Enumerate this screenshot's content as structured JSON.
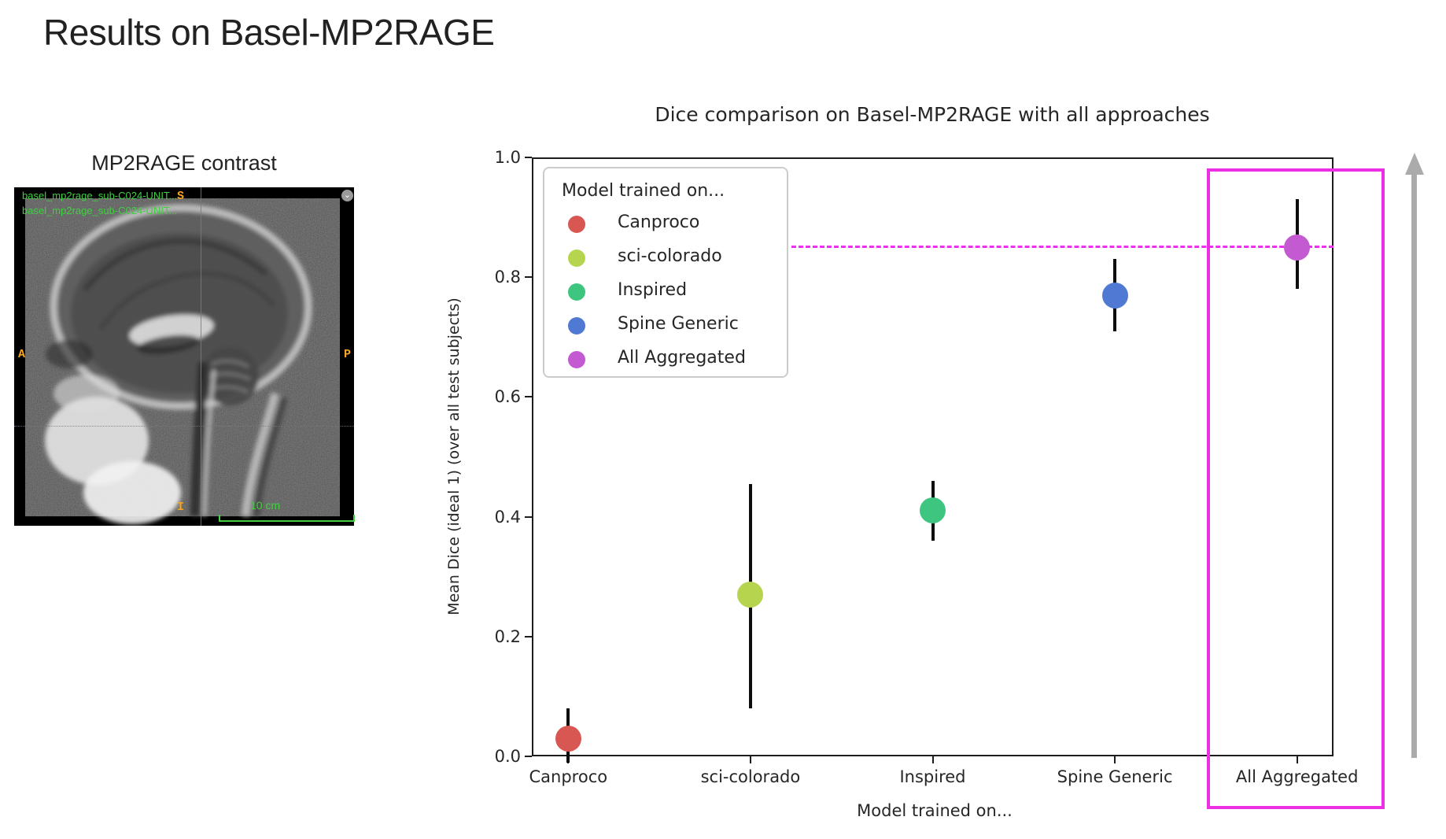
{
  "slide": {
    "title": "Results on Basel-MP2RAGE"
  },
  "mri_panel": {
    "caption": "MP2RAGE contrast",
    "overlay_line1": "basel_mp2rage_sub-C024-UNIT...",
    "overlay_line2": "basel_mp2rage_sub-C024-UNIT...",
    "orientation_markers": {
      "top": "S",
      "left": "A",
      "right": "P",
      "bottom": "I"
    },
    "scale_label": "10 cm",
    "overlay_text_color": "#3fd13f",
    "orientation_color": "#f5a623"
  },
  "chart_data": {
    "type": "scatter",
    "title": "Dice comparison on Basel-MP2RAGE with all approaches",
    "xlabel": "Model trained on...",
    "ylabel": "Mean Dice (ideal 1) (over all test subjects)",
    "ylim": [
      0.0,
      1.0
    ],
    "ytick_labels": [
      "0.0",
      "0.2",
      "0.4",
      "0.6",
      "0.8",
      "1.0"
    ],
    "categories": [
      "Canproco",
      "sci-colorado",
      "Inspired",
      "Spine Generic",
      "All Aggregated"
    ],
    "grid": false,
    "legend_title": "Model trained on...",
    "legend_position": "upper left",
    "points": [
      {
        "label": "Canproco",
        "color": "#d85752",
        "mean": 0.03,
        "err_low": -0.01,
        "err_high": 0.08
      },
      {
        "label": "sci-colorado",
        "color": "#b7d44e",
        "mean": 0.27,
        "err_low": 0.08,
        "err_high": 0.455
      },
      {
        "label": "Inspired",
        "color": "#3ec680",
        "mean": 0.41,
        "err_low": 0.36,
        "err_high": 0.46
      },
      {
        "label": "Spine Generic",
        "color": "#5079d4",
        "mean": 0.77,
        "err_low": 0.71,
        "err_high": 0.83
      },
      {
        "label": "All Aggregated",
        "color": "#c45ad2",
        "mean": 0.85,
        "err_low": 0.78,
        "err_high": 0.93
      }
    ],
    "reference_line": {
      "value": 0.85,
      "style": "dashed",
      "color": "#f02df0"
    },
    "highlight_box": {
      "category": "All Aggregated",
      "color": "#ed2fe4"
    }
  },
  "annotations": {
    "arrow_direction": "up",
    "arrow_color": "#ababab"
  }
}
